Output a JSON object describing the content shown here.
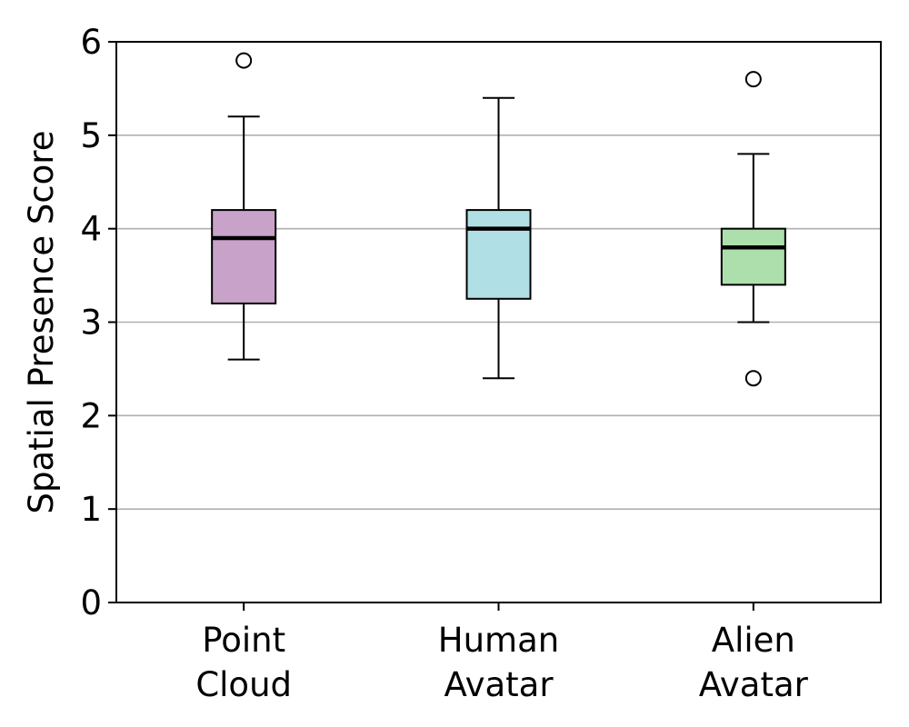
{
  "chart_data": {
    "type": "box",
    "title": "",
    "xlabel": "",
    "ylabel": "Spatial Presence Score",
    "ylim": [
      0,
      6
    ],
    "yticks": [
      "0",
      "1",
      "2",
      "3",
      "4",
      "5",
      "6"
    ],
    "grid": "horizontal",
    "categories": [
      {
        "line1": "Point",
        "line2": "Cloud"
      },
      {
        "line1": "Human",
        "line2": "Avatar"
      },
      {
        "line1": "Alien",
        "line2": "Avatar"
      }
    ],
    "boxes": [
      {
        "whisker_low": 2.6,
        "q1": 3.2,
        "median": 3.9,
        "q3": 4.2,
        "whisker_high": 5.2,
        "outliers": [
          5.8
        ],
        "color": "#c8a2c8"
      },
      {
        "whisker_low": 2.4,
        "q1": 3.25,
        "median": 4.0,
        "q3": 4.2,
        "whisker_high": 5.4,
        "outliers": [],
        "color": "#b0e0e6"
      },
      {
        "whisker_low": 3.0,
        "q1": 3.4,
        "median": 3.8,
        "q3": 4.0,
        "whisker_high": 4.8,
        "outliers": [
          5.6,
          2.4
        ],
        "color": "#addfad"
      }
    ]
  }
}
